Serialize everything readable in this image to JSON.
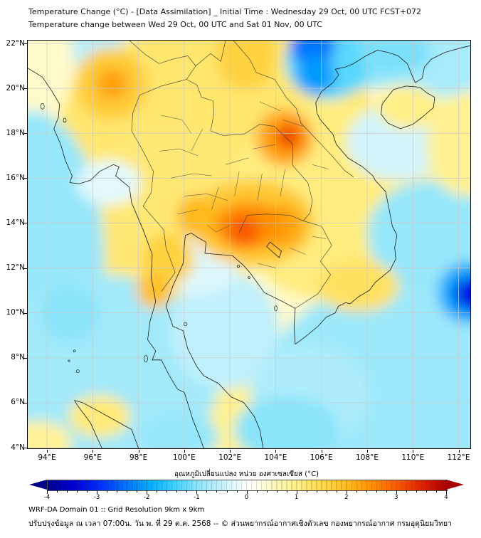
{
  "header": {
    "title_line1": "Temperature Change (°C) - [Data Assimilation] _ Initial Time : Wednesday 29 Oct, 00 UTC FCST+072",
    "title_line2": "Temperature change between Wed 29 Oct, 00 UTC and Sat 01 Nov, 00 UTC"
  },
  "map": {
    "lat_ticks": [
      "22°N",
      "20°N",
      "18°N",
      "16°N",
      "14°N",
      "12°N",
      "10°N",
      "8°N",
      "6°N",
      "4°N"
    ],
    "lat_tick_values": [
      22,
      20,
      18,
      16,
      14,
      12,
      10,
      8,
      6,
      4
    ],
    "lon_ticks": [
      "94°E",
      "96°E",
      "98°E",
      "100°E",
      "102°E",
      "104°E",
      "106°E",
      "108°E",
      "110°E",
      "112°E"
    ],
    "lon_tick_values": [
      94,
      96,
      98,
      100,
      102,
      104,
      106,
      108,
      110,
      112
    ],
    "extent": {
      "lon_min": 93.16,
      "lon_max": 112.51,
      "lat_min": 3.97,
      "lat_max": 22.127
    },
    "base_value": 0.45,
    "anomalies": [
      {
        "lon": 101.5,
        "lat": 18.0,
        "rx": 7.0,
        "ry": 5.0,
        "value": 1.2
      },
      {
        "lon": 99.5,
        "lat": 14.5,
        "rx": 4.5,
        "ry": 4.0,
        "value": 1.15
      },
      {
        "lon": 106.5,
        "lat": 15.0,
        "rx": 4.5,
        "ry": 4.5,
        "value": 1.05
      },
      {
        "lon": 103.0,
        "lat": 6.0,
        "rx": 3.5,
        "ry": 2.5,
        "value": 0.9
      },
      {
        "lon": 93.3,
        "lat": 12.5,
        "rx": 3.2,
        "ry": 6.5,
        "value": -0.9
      },
      {
        "lon": 96.5,
        "lat": 7.2,
        "rx": 5.0,
        "ry": 4.5,
        "value": -0.8
      },
      {
        "lon": 101.8,
        "lat": 9.2,
        "rx": 2.4,
        "ry": 2.6,
        "value": -0.55
      },
      {
        "lon": 109.8,
        "lat": 6.8,
        "rx": 6.2,
        "ry": 4.8,
        "value": -0.85
      },
      {
        "lon": 110.8,
        "lat": 13.5,
        "rx": 2.8,
        "ry": 2.4,
        "value": -0.9
      },
      {
        "lon": 107.8,
        "lat": 21.7,
        "rx": 3.2,
        "ry": 1.7,
        "value": -0.9
      },
      {
        "lon": 111.2,
        "lat": 21.2,
        "rx": 2.2,
        "ry": 1.6,
        "value": -0.75
      },
      {
        "lon": 96.2,
        "lat": 21.9,
        "rx": 1.1,
        "ry": 1.9,
        "value": -0.6
      },
      {
        "lon": 100.7,
        "lat": 12.1,
        "rx": 1.7,
        "ry": 1.3,
        "value": -0.3
      },
      {
        "lon": 96.7,
        "lat": 15.8,
        "rx": 1.4,
        "ry": 1.0,
        "value": -0.25
      },
      {
        "lon": 109.3,
        "lat": 17.6,
        "rx": 2.2,
        "ry": 1.7,
        "value": -0.4
      },
      {
        "lon": 105.5,
        "lat": 6.4,
        "rx": 2.6,
        "ry": 2.2,
        "value": -0.7
      },
      {
        "lon": 96.8,
        "lat": 20.2,
        "r": 1.6,
        "value": 1.7
      },
      {
        "lon": 102.7,
        "lat": 21.4,
        "rx": 1.3,
        "ry": 1.5,
        "value": 1.6
      },
      {
        "lon": 103.0,
        "lat": 14.0,
        "rx": 2.7,
        "ry": 1.9,
        "value": 1.8
      },
      {
        "lon": 109.8,
        "lat": 19.15,
        "rx": 1.35,
        "ry": 0.95,
        "value": 1.0
      },
      {
        "lon": 107.6,
        "lat": 11.2,
        "rx": 1.8,
        "ry": 1.15,
        "value": 1.3
      },
      {
        "lon": 112.3,
        "lat": 17.5,
        "rx": 1.7,
        "ry": 2.3,
        "value": 0.9
      },
      {
        "lon": 96.3,
        "lat": 5.4,
        "rx": 1.35,
        "ry": 0.95,
        "value": 1.1
      },
      {
        "lon": 93.6,
        "lat": 4.2,
        "rx": 1.5,
        "ry": 1.0,
        "value": 0.85
      },
      {
        "lon": 100.6,
        "lat": 14.3,
        "r": 0.95,
        "value": 2.0
      },
      {
        "lon": 99.3,
        "lat": 12.4,
        "r": 1.15,
        "value": 1.6
      },
      {
        "lon": 98.7,
        "lat": 11.0,
        "r": 0.8,
        "value": 1.9
      },
      {
        "lon": 104.4,
        "lat": 17.8,
        "r": 1.25,
        "value": 2.3
      },
      {
        "lon": 104.2,
        "lat": 13.9,
        "r": 0.95,
        "value": 2.3
      },
      {
        "lon": 102.8,
        "lat": 13.9,
        "rx": 1.5,
        "ry": 1.05,
        "value": 2.5
      },
      {
        "lon": 96.85,
        "lat": 20.2,
        "r": 0.7,
        "value": 2.3
      },
      {
        "lon": 102.6,
        "lat": 13.65,
        "r": 0.7,
        "value": 3.0
      },
      {
        "lon": 104.55,
        "lat": 17.85,
        "r": 0.55,
        "value": 3.2
      },
      {
        "lon": 106.3,
        "lat": 21.2,
        "rx": 1.9,
        "ry": 1.7,
        "value": -1.3
      },
      {
        "lon": 109.2,
        "lat": 21.6,
        "rx": 1.6,
        "ry": 1.0,
        "value": -1.1
      },
      {
        "lon": 104.5,
        "lat": 4.8,
        "rx": 2.3,
        "ry": 1.5,
        "value": -1.0
      },
      {
        "lon": 99.8,
        "lat": 4.5,
        "rx": 1.7,
        "ry": 1.1,
        "value": -0.9
      },
      {
        "lon": 95.0,
        "lat": 10.0,
        "r": 1.3,
        "value": -1.0
      },
      {
        "lon": 105.6,
        "lat": 21.95,
        "r": 1.0,
        "value": -2.4
      },
      {
        "lon": 105.75,
        "lat": 20.6,
        "r": 0.85,
        "value": -2.1
      },
      {
        "lon": 112.45,
        "lat": 10.9,
        "r": 1.35,
        "value": -2.0
      },
      {
        "lon": 112.55,
        "lat": 10.85,
        "r": 0.75,
        "value": -3.3
      }
    ]
  },
  "colorbar": {
    "title": "อุณหภูมิเปลี่ยนแปลง หน่วย องศาเซลเซียส (°C)",
    "ticks": [
      "-4",
      "-3",
      "-2",
      "-1",
      "0",
      "1",
      "2",
      "3",
      "4"
    ],
    "tick_values": [
      -4,
      -3,
      -2,
      -1,
      0,
      1,
      2,
      3,
      4
    ],
    "minor_tick_step": 0.2,
    "range": [
      -4,
      4
    ],
    "stops": [
      {
        "v": -4,
        "c": "#00008b"
      },
      {
        "v": -3.5,
        "c": "#0000d2"
      },
      {
        "v": -3,
        "c": "#0028ff"
      },
      {
        "v": -2.5,
        "c": "#006aff"
      },
      {
        "v": -2,
        "c": "#00a6ff"
      },
      {
        "v": -1.5,
        "c": "#38ceff"
      },
      {
        "v": -1,
        "c": "#8ae4fa"
      },
      {
        "v": -0.5,
        "c": "#c6f1fb"
      },
      {
        "v": -0.15,
        "c": "#eefcfe"
      },
      {
        "v": 0,
        "c": "#ffffff"
      },
      {
        "v": 0.15,
        "c": "#fffef0"
      },
      {
        "v": 0.5,
        "c": "#fff9c2"
      },
      {
        "v": 1,
        "c": "#ffef85"
      },
      {
        "v": 1.5,
        "c": "#ffd84a"
      },
      {
        "v": 2,
        "c": "#ffbb1e"
      },
      {
        "v": 2.5,
        "c": "#ff8f00"
      },
      {
        "v": 3,
        "c": "#fa5a00"
      },
      {
        "v": 3.5,
        "c": "#e02200"
      },
      {
        "v": 4,
        "c": "#a80000"
      }
    ]
  },
  "footer": {
    "line1": "WRF-DA Domain 01 :: Grid Resolution 9km x 9km",
    "line2": "ปรับปรุงข้อมูล ณ เวลา 07:00น. วัน พ. ที่ 29 ต.ค. 2568 -- © ส่วนพยากรณ์อากาศเชิงตัวเลข กองพยากรณ์อากาศ กรมอุตุนิยมวิทยา"
  }
}
